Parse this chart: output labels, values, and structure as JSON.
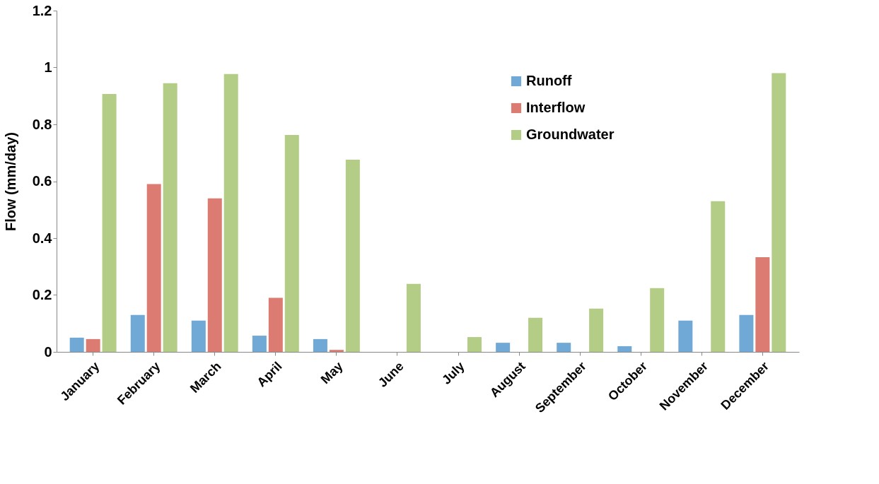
{
  "chart_data": {
    "type": "bar",
    "ylabel": "Flow (mm/day)",
    "categories": [
      "January",
      "February",
      "March",
      "April",
      "May",
      "June",
      "July",
      "August",
      "September",
      "October",
      "November",
      "December"
    ],
    "series": [
      {
        "name": "Runoff",
        "color": "#70a9d6",
        "values": [
          0.05,
          0.13,
          0.11,
          0.057,
          0.045,
          0,
          0,
          0.032,
          0.032,
          0.02,
          0.11,
          0.13
        ]
      },
      {
        "name": "Interflow",
        "color": "#dc7b72",
        "values": [
          0.045,
          0.59,
          0.54,
          0.19,
          0.007,
          0,
          0,
          0,
          0,
          0,
          0,
          0.333
        ]
      },
      {
        "name": "Groundwater",
        "color": "#b3cd86",
        "values": [
          0.907,
          0.945,
          0.977,
          0.763,
          0.676,
          0.239,
          0.052,
          0.12,
          0.152,
          0.224,
          0.53,
          0.98
        ]
      }
    ],
    "ylim": [
      0,
      1.2
    ],
    "yticks": [
      0,
      0.2,
      0.4,
      0.6,
      0.8,
      1,
      1.2
    ],
    "grid": false,
    "legend": "top right"
  }
}
